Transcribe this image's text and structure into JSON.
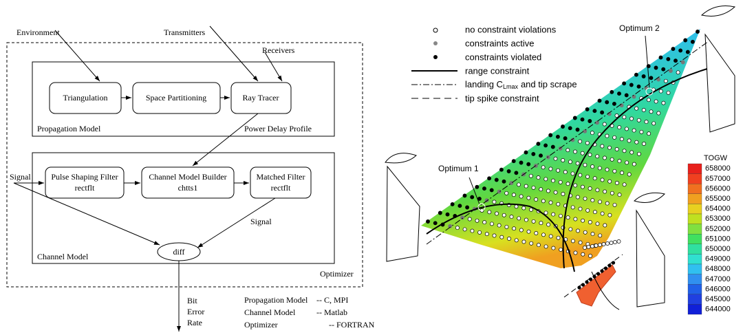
{
  "left": {
    "inputs": {
      "environment": "Environment",
      "transmitters": "Transmitters",
      "receivers": "Receivers"
    },
    "propagation": {
      "boxes": [
        "Triangulation",
        "Space Partitioning",
        "Ray Tracer"
      ],
      "label": "Propagation Model",
      "output": "Power Delay Profile"
    },
    "channel": {
      "input": "Signal",
      "boxes": [
        [
          "Pulse Shaping Filter",
          "rectflt"
        ],
        [
          "Channel Model Builder",
          "chtts1"
        ],
        [
          "Matched Filter",
          "rectflt"
        ]
      ],
      "output": "Signal",
      "label": "Channel Model",
      "diff": "diff"
    },
    "optimizer": "Optimizer",
    "result": [
      "Bit",
      "Error",
      "Rate"
    ],
    "languages": [
      [
        "Propagation Model",
        "-- C, MPI"
      ],
      [
        "Channel Model",
        "-- Matlab"
      ],
      [
        "Optimizer",
        "-- FORTRAN"
      ]
    ]
  },
  "right": {
    "legend": [
      "no constraint violations",
      "constraints active",
      "constraints violated",
      "range constraint",
      {
        "text": "landing C",
        "sub": "Lmax",
        "rest": "and tip scrape"
      },
      "tip spike constraint"
    ],
    "optima": [
      "Optimum 1",
      "Optimum 2"
    ],
    "colorbar": {
      "title": "TOGW",
      "labels": [
        658000,
        657000,
        656000,
        655000,
        654000,
        653000,
        652000,
        651000,
        650000,
        649000,
        648000,
        647000,
        646000,
        645000,
        644000
      ]
    }
  }
}
